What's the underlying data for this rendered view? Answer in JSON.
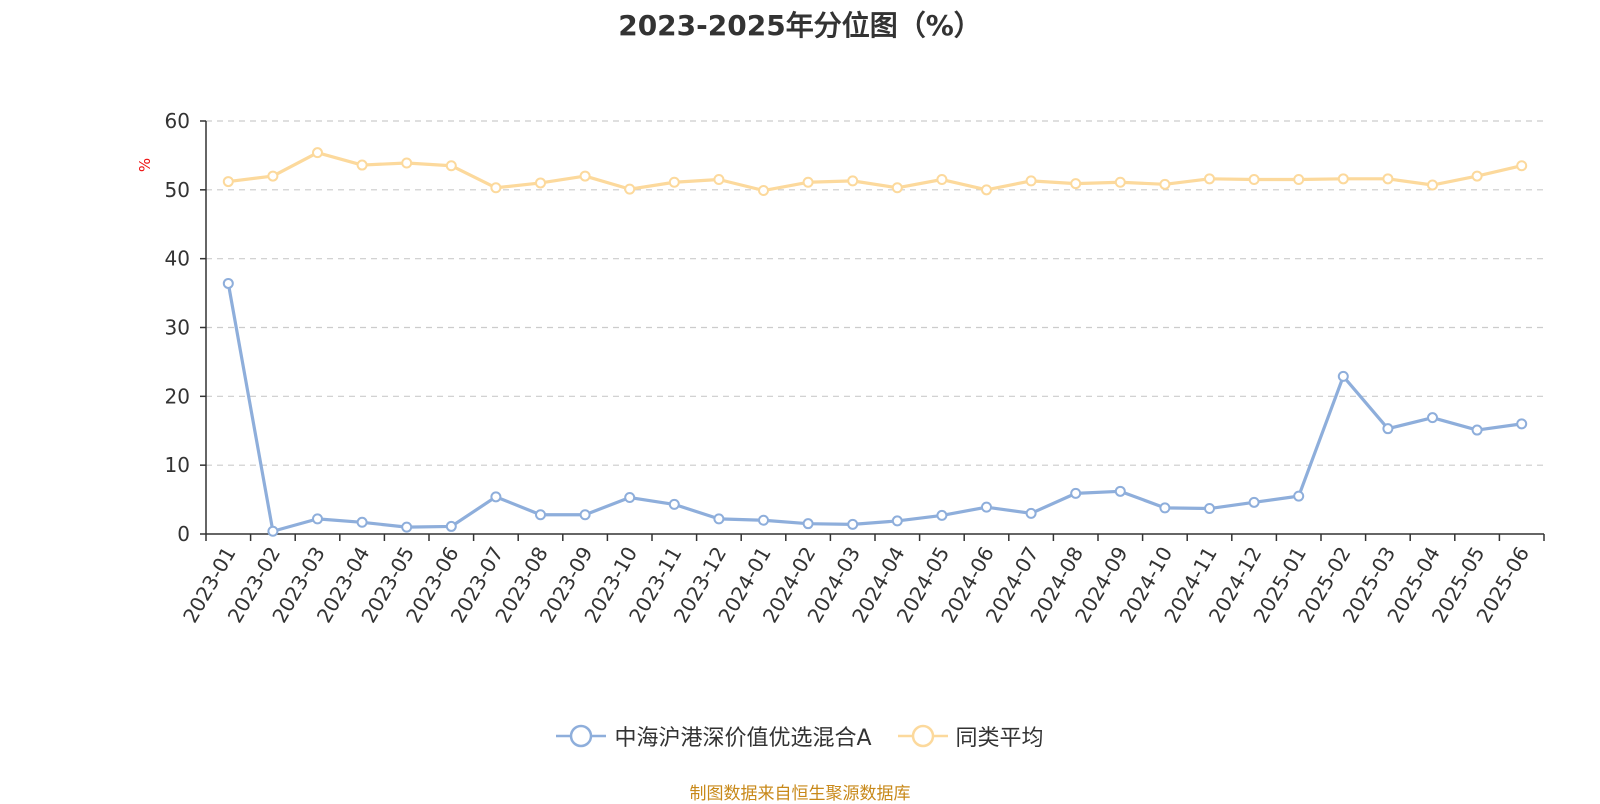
{
  "title": "2023-2025年分位图（%）",
  "unit": "%",
  "source": "制图数据来自恒生聚源数据库",
  "colors": {
    "fund": "#8eaedb",
    "avg": "#fcd99c"
  },
  "chart_data": {
    "type": "line",
    "title": "2023-2025年分位图（%）",
    "ylabel": "%",
    "ylim": [
      0,
      60
    ],
    "yticks": [
      0,
      10,
      20,
      30,
      40,
      50,
      60
    ],
    "grid": true,
    "legend_position": "bottom",
    "categories": [
      "2023-01",
      "2023-02",
      "2023-03",
      "2023-04",
      "2023-05",
      "2023-06",
      "2023-07",
      "2023-08",
      "2023-09",
      "2023-10",
      "2023-11",
      "2023-12",
      "2024-01",
      "2024-02",
      "2024-03",
      "2024-04",
      "2024-05",
      "2024-06",
      "2024-07",
      "2024-08",
      "2024-09",
      "2024-10",
      "2024-11",
      "2024-12",
      "2025-01",
      "2025-02",
      "2025-03",
      "2025-04",
      "2025-05",
      "2025-06"
    ],
    "series": [
      {
        "name": "中海沪港深价值优选混合A",
        "color": "#8eaedb",
        "values": [
          36.4,
          0.4,
          2.2,
          1.7,
          1.0,
          1.1,
          5.4,
          2.8,
          2.8,
          5.3,
          4.3,
          2.2,
          2.0,
          1.5,
          1.4,
          1.9,
          2.7,
          3.9,
          3.0,
          5.9,
          6.2,
          3.8,
          3.7,
          4.6,
          5.5,
          22.9,
          15.3,
          16.9,
          15.1,
          16.0
        ]
      },
      {
        "name": "同类平均",
        "color": "#fcd99c",
        "values": [
          51.2,
          52.0,
          55.4,
          53.6,
          53.9,
          53.5,
          50.3,
          51.0,
          52.0,
          50.1,
          51.1,
          51.5,
          49.9,
          51.1,
          51.3,
          50.3,
          51.5,
          50.0,
          51.3,
          50.9,
          51.1,
          50.8,
          51.6,
          51.5,
          51.5,
          51.6,
          51.6,
          50.7,
          52.0,
          53.5
        ]
      }
    ]
  }
}
